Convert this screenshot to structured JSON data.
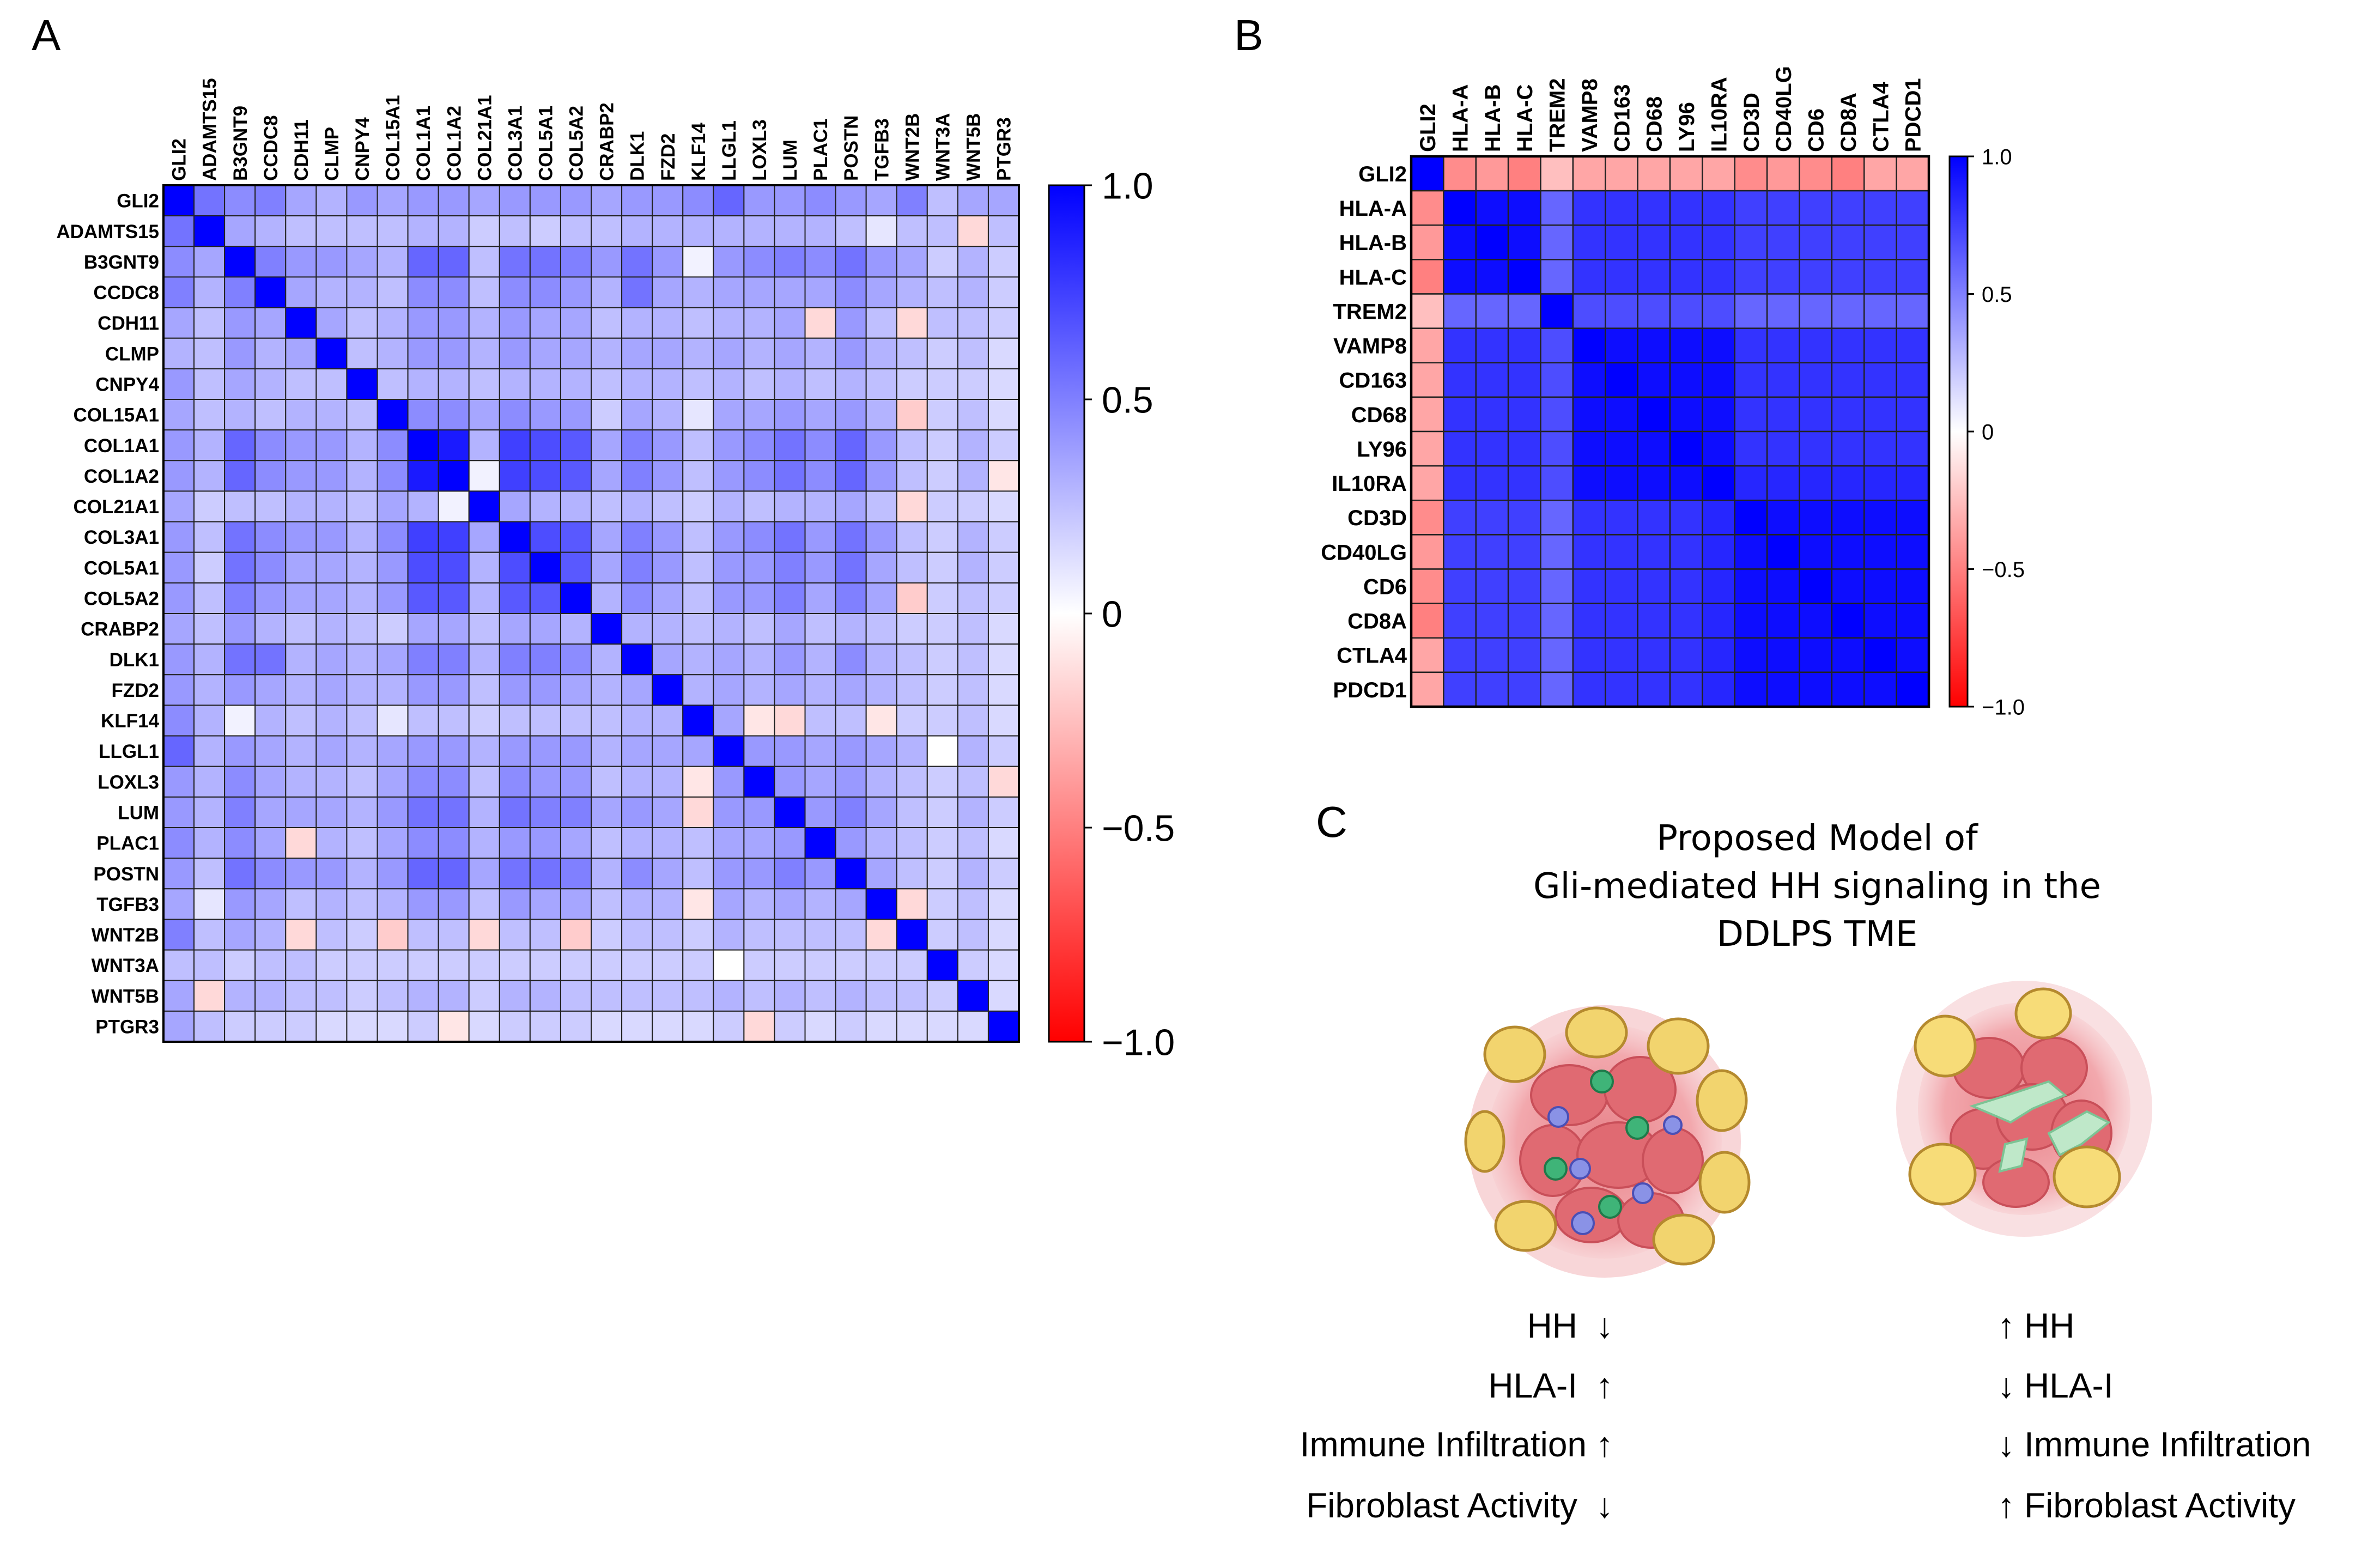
{
  "panel_labels": {
    "a": "A",
    "b": "B",
    "c": "C"
  },
  "colorscale": {
    "low": "#ff0000",
    "mid": "#ffffff",
    "high": "#0000ff"
  },
  "chart_data": [
    {
      "type": "heatmap",
      "panel": "A",
      "title": "",
      "genes": [
        "GLI2",
        "ADAMTS15",
        "B3GNT9",
        "CCDC8",
        "CDH11",
        "CLMP",
        "CNPY4",
        "COL15A1",
        "COL1A1",
        "COL1A2",
        "COL21A1",
        "COL3A1",
        "COL5A1",
        "COL5A2",
        "CRABP2",
        "DLK1",
        "FZD2",
        "KLF14",
        "LLGL1",
        "LOXL3",
        "LUM",
        "PLAC1",
        "POSTN",
        "TGFB3",
        "WNT2B",
        "WNT3A",
        "WNT5B",
        "PTGR3"
      ],
      "values": [
        [
          1.0,
          0.55,
          0.45,
          0.5,
          0.35,
          0.3,
          0.4,
          0.35,
          0.4,
          0.4,
          0.35,
          0.4,
          0.4,
          0.4,
          0.35,
          0.4,
          0.4,
          0.45,
          0.6,
          0.4,
          0.4,
          0.45,
          0.4,
          0.35,
          0.5,
          0.25,
          0.35,
          0.35
        ],
        [
          0.55,
          1.0,
          0.35,
          0.3,
          0.25,
          0.25,
          0.25,
          0.25,
          0.3,
          0.3,
          0.2,
          0.25,
          0.2,
          0.25,
          0.25,
          0.3,
          0.3,
          0.3,
          0.3,
          0.3,
          0.3,
          0.3,
          0.25,
          0.1,
          0.25,
          0.25,
          -0.15,
          0.25
        ],
        [
          0.45,
          0.35,
          1.0,
          0.5,
          0.4,
          0.4,
          0.35,
          0.3,
          0.6,
          0.6,
          0.25,
          0.55,
          0.55,
          0.5,
          0.4,
          0.55,
          0.4,
          0.05,
          0.4,
          0.45,
          0.5,
          0.45,
          0.55,
          0.4,
          0.35,
          0.2,
          0.3,
          0.2
        ],
        [
          0.5,
          0.3,
          0.5,
          1.0,
          0.35,
          0.3,
          0.3,
          0.25,
          0.45,
          0.45,
          0.25,
          0.45,
          0.45,
          0.4,
          0.3,
          0.55,
          0.35,
          0.3,
          0.35,
          0.35,
          0.35,
          0.35,
          0.45,
          0.35,
          0.3,
          0.25,
          0.3,
          0.2
        ],
        [
          0.35,
          0.25,
          0.4,
          0.35,
          1.0,
          0.35,
          0.25,
          0.3,
          0.4,
          0.4,
          0.3,
          0.4,
          0.35,
          0.35,
          0.25,
          0.3,
          0.3,
          0.25,
          0.3,
          0.3,
          0.35,
          -0.15,
          0.4,
          0.25,
          -0.15,
          0.25,
          0.25,
          0.2
        ],
        [
          0.3,
          0.25,
          0.4,
          0.3,
          0.35,
          1.0,
          0.25,
          0.3,
          0.4,
          0.4,
          0.3,
          0.4,
          0.35,
          0.35,
          0.3,
          0.35,
          0.35,
          0.3,
          0.35,
          0.3,
          0.35,
          0.3,
          0.4,
          0.3,
          0.25,
          0.2,
          0.25,
          0.15
        ],
        [
          0.4,
          0.25,
          0.35,
          0.3,
          0.25,
          0.25,
          1.0,
          0.25,
          0.3,
          0.3,
          0.25,
          0.3,
          0.3,
          0.3,
          0.25,
          0.3,
          0.3,
          0.25,
          0.3,
          0.25,
          0.3,
          0.25,
          0.3,
          0.25,
          0.2,
          0.2,
          0.2,
          0.15
        ],
        [
          0.35,
          0.25,
          0.3,
          0.25,
          0.3,
          0.3,
          0.25,
          1.0,
          0.45,
          0.45,
          0.35,
          0.45,
          0.4,
          0.4,
          0.2,
          0.35,
          0.3,
          0.1,
          0.35,
          0.35,
          0.4,
          0.35,
          0.4,
          0.3,
          -0.2,
          0.2,
          0.25,
          0.15
        ],
        [
          0.4,
          0.3,
          0.6,
          0.45,
          0.4,
          0.4,
          0.3,
          0.45,
          1.0,
          0.9,
          0.3,
          0.75,
          0.7,
          0.65,
          0.35,
          0.5,
          0.4,
          0.25,
          0.4,
          0.45,
          0.55,
          0.45,
          0.6,
          0.4,
          0.25,
          0.2,
          0.3,
          0.2
        ],
        [
          0.4,
          0.3,
          0.6,
          0.45,
          0.4,
          0.4,
          0.3,
          0.45,
          0.9,
          1.0,
          0.05,
          0.75,
          0.7,
          0.65,
          0.35,
          0.5,
          0.4,
          0.25,
          0.4,
          0.45,
          0.55,
          0.45,
          0.6,
          0.4,
          0.25,
          0.2,
          0.3,
          -0.1
        ],
        [
          0.35,
          0.2,
          0.25,
          0.25,
          0.3,
          0.3,
          0.25,
          0.35,
          0.3,
          0.05,
          1.0,
          0.35,
          0.3,
          0.3,
          0.25,
          0.3,
          0.25,
          0.2,
          0.3,
          0.25,
          0.3,
          0.3,
          0.35,
          0.25,
          -0.15,
          0.2,
          0.2,
          0.15
        ],
        [
          0.4,
          0.25,
          0.55,
          0.45,
          0.4,
          0.4,
          0.3,
          0.45,
          0.75,
          0.75,
          0.35,
          1.0,
          0.7,
          0.65,
          0.35,
          0.5,
          0.4,
          0.25,
          0.4,
          0.45,
          0.55,
          0.4,
          0.55,
          0.4,
          0.25,
          0.2,
          0.3,
          0.2
        ],
        [
          0.4,
          0.2,
          0.55,
          0.45,
          0.35,
          0.35,
          0.3,
          0.4,
          0.7,
          0.7,
          0.3,
          0.7,
          1.0,
          0.65,
          0.35,
          0.5,
          0.4,
          0.25,
          0.4,
          0.4,
          0.5,
          0.4,
          0.55,
          0.35,
          0.25,
          0.2,
          0.3,
          0.2
        ],
        [
          0.4,
          0.25,
          0.5,
          0.4,
          0.35,
          0.35,
          0.3,
          0.4,
          0.65,
          0.65,
          0.3,
          0.65,
          0.65,
          1.0,
          0.3,
          0.45,
          0.35,
          0.25,
          0.4,
          0.4,
          0.5,
          0.35,
          0.5,
          0.35,
          -0.2,
          0.2,
          0.25,
          0.2
        ],
        [
          0.35,
          0.25,
          0.4,
          0.3,
          0.25,
          0.3,
          0.25,
          0.2,
          0.35,
          0.35,
          0.25,
          0.35,
          0.35,
          0.3,
          1.0,
          0.3,
          0.3,
          0.25,
          0.3,
          0.25,
          0.35,
          0.25,
          0.3,
          0.25,
          0.2,
          0.2,
          0.25,
          0.15
        ],
        [
          0.4,
          0.3,
          0.55,
          0.55,
          0.3,
          0.35,
          0.3,
          0.35,
          0.5,
          0.5,
          0.3,
          0.5,
          0.5,
          0.45,
          0.3,
          1.0,
          0.35,
          0.3,
          0.35,
          0.3,
          0.4,
          0.3,
          0.45,
          0.3,
          0.25,
          0.2,
          0.25,
          0.15
        ],
        [
          0.4,
          0.3,
          0.4,
          0.35,
          0.3,
          0.35,
          0.3,
          0.3,
          0.4,
          0.4,
          0.25,
          0.4,
          0.4,
          0.35,
          0.3,
          0.35,
          1.0,
          0.3,
          0.35,
          0.3,
          0.35,
          0.3,
          0.35,
          0.3,
          0.25,
          0.2,
          0.25,
          0.15
        ],
        [
          0.45,
          0.3,
          0.05,
          0.3,
          0.25,
          0.3,
          0.25,
          0.1,
          0.25,
          0.25,
          0.2,
          0.25,
          0.25,
          0.25,
          0.25,
          0.3,
          0.3,
          1.0,
          0.35,
          -0.1,
          -0.15,
          0.25,
          0.25,
          -0.1,
          0.2,
          0.2,
          0.25,
          0.15
        ],
        [
          0.6,
          0.3,
          0.4,
          0.35,
          0.3,
          0.35,
          0.3,
          0.35,
          0.4,
          0.4,
          0.3,
          0.4,
          0.4,
          0.4,
          0.3,
          0.35,
          0.35,
          0.35,
          1.0,
          0.4,
          0.4,
          0.35,
          0.4,
          0.35,
          0.3,
          0.0,
          0.3,
          0.2
        ],
        [
          0.4,
          0.3,
          0.45,
          0.35,
          0.3,
          0.3,
          0.25,
          0.35,
          0.45,
          0.45,
          0.25,
          0.45,
          0.4,
          0.4,
          0.25,
          0.3,
          0.3,
          -0.1,
          0.4,
          1.0,
          0.4,
          0.35,
          0.4,
          0.3,
          0.25,
          0.2,
          0.25,
          -0.15
        ],
        [
          0.4,
          0.3,
          0.5,
          0.35,
          0.35,
          0.35,
          0.3,
          0.4,
          0.55,
          0.55,
          0.3,
          0.55,
          0.5,
          0.5,
          0.35,
          0.4,
          0.35,
          -0.15,
          0.4,
          0.4,
          1.0,
          0.4,
          0.5,
          0.35,
          0.25,
          0.2,
          0.3,
          0.2
        ],
        [
          0.45,
          0.3,
          0.45,
          0.35,
          -0.15,
          0.3,
          0.25,
          0.35,
          0.45,
          0.45,
          0.3,
          0.4,
          0.4,
          0.35,
          0.25,
          0.3,
          0.3,
          0.25,
          0.35,
          0.35,
          0.4,
          1.0,
          0.4,
          0.3,
          0.25,
          0.2,
          0.25,
          0.15
        ],
        [
          0.4,
          0.25,
          0.55,
          0.45,
          0.4,
          0.4,
          0.3,
          0.4,
          0.6,
          0.6,
          0.35,
          0.55,
          0.55,
          0.5,
          0.3,
          0.45,
          0.35,
          0.25,
          0.4,
          0.4,
          0.5,
          0.4,
          1.0,
          0.35,
          0.25,
          0.2,
          0.3,
          0.2
        ],
        [
          0.35,
          0.1,
          0.4,
          0.35,
          0.25,
          0.3,
          0.25,
          0.3,
          0.4,
          0.4,
          0.25,
          0.4,
          0.35,
          0.35,
          0.25,
          0.3,
          0.3,
          -0.1,
          0.35,
          0.3,
          0.35,
          0.3,
          0.35,
          1.0,
          -0.15,
          0.2,
          0.25,
          0.15
        ],
        [
          0.5,
          0.25,
          0.35,
          0.3,
          -0.15,
          0.25,
          0.2,
          -0.2,
          0.25,
          0.25,
          -0.15,
          0.25,
          0.25,
          -0.2,
          0.2,
          0.25,
          0.25,
          0.2,
          0.3,
          0.25,
          0.25,
          0.25,
          0.25,
          -0.15,
          1.0,
          0.2,
          0.25,
          0.15
        ],
        [
          0.25,
          0.25,
          0.2,
          0.25,
          0.25,
          0.2,
          0.2,
          0.2,
          0.2,
          0.2,
          0.2,
          0.2,
          0.2,
          0.2,
          0.2,
          0.2,
          0.2,
          0.2,
          0.0,
          0.2,
          0.2,
          0.2,
          0.2,
          0.2,
          0.2,
          1.0,
          0.2,
          0.15
        ],
        [
          0.35,
          -0.15,
          0.3,
          0.3,
          0.25,
          0.25,
          0.2,
          0.25,
          0.3,
          0.3,
          0.2,
          0.3,
          0.3,
          0.25,
          0.25,
          0.25,
          0.25,
          0.25,
          0.3,
          0.25,
          0.3,
          0.25,
          0.3,
          0.25,
          0.25,
          0.2,
          1.0,
          0.15
        ],
        [
          0.35,
          0.25,
          0.2,
          0.2,
          0.2,
          0.15,
          0.15,
          0.15,
          0.2,
          -0.1,
          0.15,
          0.2,
          0.2,
          0.2,
          0.15,
          0.15,
          0.15,
          0.15,
          0.2,
          -0.15,
          0.2,
          0.15,
          0.2,
          0.15,
          0.15,
          0.15,
          0.15,
          1.0
        ]
      ],
      "colorbar": {
        "ticks": [
          1.0,
          0.5,
          0,
          -0.5,
          -1.0
        ],
        "tick_labels": [
          "1.0",
          "0.5",
          "0",
          "−0.5",
          "−1.0"
        ],
        "range": [
          -1.0,
          1.0
        ]
      }
    },
    {
      "type": "heatmap",
      "panel": "B",
      "title": "",
      "genes": [
        "GLI2",
        "HLA-A",
        "HLA-B",
        "HLA-C",
        "TREM2",
        "VAMP8",
        "CD163",
        "CD68",
        "LY96",
        "IL10RA",
        "CD3D",
        "CD40LG",
        "CD6",
        "CD8A",
        "CTLA4",
        "PDCD1"
      ],
      "values": [
        [
          1.0,
          -0.45,
          -0.4,
          -0.5,
          -0.25,
          -0.35,
          -0.35,
          -0.35,
          -0.35,
          -0.35,
          -0.45,
          -0.4,
          -0.45,
          -0.5,
          -0.35,
          -0.35
        ],
        [
          -0.45,
          1.0,
          0.95,
          0.95,
          0.6,
          0.8,
          0.8,
          0.8,
          0.8,
          0.8,
          0.75,
          0.75,
          0.75,
          0.75,
          0.75,
          0.75
        ],
        [
          -0.4,
          0.95,
          1.0,
          0.95,
          0.6,
          0.8,
          0.8,
          0.8,
          0.8,
          0.8,
          0.75,
          0.75,
          0.75,
          0.75,
          0.75,
          0.75
        ],
        [
          -0.5,
          0.95,
          0.95,
          1.0,
          0.6,
          0.8,
          0.8,
          0.8,
          0.8,
          0.8,
          0.75,
          0.75,
          0.75,
          0.75,
          0.75,
          0.75
        ],
        [
          -0.25,
          0.6,
          0.6,
          0.6,
          1.0,
          0.7,
          0.7,
          0.7,
          0.7,
          0.7,
          0.6,
          0.6,
          0.6,
          0.6,
          0.6,
          0.6
        ],
        [
          -0.35,
          0.8,
          0.8,
          0.8,
          0.7,
          1.0,
          0.95,
          0.95,
          0.95,
          0.95,
          0.8,
          0.8,
          0.8,
          0.8,
          0.8,
          0.8
        ],
        [
          -0.35,
          0.8,
          0.8,
          0.8,
          0.7,
          0.95,
          1.0,
          0.95,
          0.95,
          0.95,
          0.8,
          0.8,
          0.8,
          0.8,
          0.8,
          0.8
        ],
        [
          -0.35,
          0.8,
          0.8,
          0.8,
          0.7,
          0.95,
          0.95,
          1.0,
          0.95,
          0.95,
          0.8,
          0.8,
          0.8,
          0.8,
          0.8,
          0.8
        ],
        [
          -0.35,
          0.8,
          0.8,
          0.8,
          0.7,
          0.95,
          0.95,
          0.95,
          1.0,
          0.95,
          0.8,
          0.8,
          0.8,
          0.8,
          0.8,
          0.8
        ],
        [
          -0.35,
          0.8,
          0.8,
          0.8,
          0.7,
          0.95,
          0.95,
          0.95,
          0.95,
          1.0,
          0.85,
          0.85,
          0.85,
          0.85,
          0.85,
          0.85
        ],
        [
          -0.45,
          0.75,
          0.75,
          0.75,
          0.6,
          0.8,
          0.8,
          0.8,
          0.8,
          0.85,
          1.0,
          0.95,
          0.95,
          0.95,
          0.95,
          0.95
        ],
        [
          -0.4,
          0.75,
          0.75,
          0.75,
          0.6,
          0.8,
          0.8,
          0.8,
          0.8,
          0.85,
          0.95,
          1.0,
          0.95,
          0.95,
          0.95,
          0.95
        ],
        [
          -0.45,
          0.75,
          0.75,
          0.75,
          0.6,
          0.8,
          0.8,
          0.8,
          0.8,
          0.85,
          0.95,
          0.95,
          1.0,
          0.95,
          0.95,
          0.95
        ],
        [
          -0.5,
          0.75,
          0.75,
          0.75,
          0.6,
          0.8,
          0.8,
          0.8,
          0.8,
          0.85,
          0.95,
          0.95,
          0.95,
          1.0,
          0.95,
          0.95
        ],
        [
          -0.35,
          0.75,
          0.75,
          0.75,
          0.6,
          0.8,
          0.8,
          0.8,
          0.8,
          0.85,
          0.95,
          0.95,
          0.95,
          0.95,
          1.0,
          0.95
        ],
        [
          -0.35,
          0.75,
          0.75,
          0.75,
          0.6,
          0.8,
          0.8,
          0.8,
          0.8,
          0.85,
          0.95,
          0.95,
          0.95,
          0.95,
          0.95,
          1.0
        ]
      ],
      "colorbar": {
        "ticks": [
          1.0,
          0.5,
          0,
          -0.5,
          -1.0
        ],
        "tick_labels": [
          "1.0",
          "0.5",
          "0",
          "−0.5",
          "−1.0"
        ],
        "range": [
          -1.0,
          1.0
        ]
      }
    }
  ],
  "model": {
    "title_lines": [
      "Proposed Model of",
      "Gli-mediated HH signaling in the",
      "DDLPS TME"
    ],
    "left": {
      "tumor": "tumor-with-immune-infiltration",
      "items": [
        {
          "label": "HH",
          "arrow": "down",
          "symbol": "↓"
        },
        {
          "label": "HLA-I",
          "arrow": "up",
          "symbol": "↑"
        },
        {
          "label": "Immune Infiltration",
          "arrow": "up",
          "symbol": "↑"
        },
        {
          "label": "Fibroblast Activity",
          "arrow": "down",
          "symbol": "↓"
        }
      ]
    },
    "right": {
      "tumor": "tumor-with-active-fibroblasts",
      "items": [
        {
          "label": "HH",
          "arrow": "up",
          "symbol": "↑"
        },
        {
          "label": "HLA-I",
          "arrow": "down",
          "symbol": "↓"
        },
        {
          "label": "Immune Infiltration",
          "arrow": "down",
          "symbol": "↓"
        },
        {
          "label": "Fibroblast Activity",
          "arrow": "up",
          "symbol": "↑"
        }
      ]
    }
  }
}
